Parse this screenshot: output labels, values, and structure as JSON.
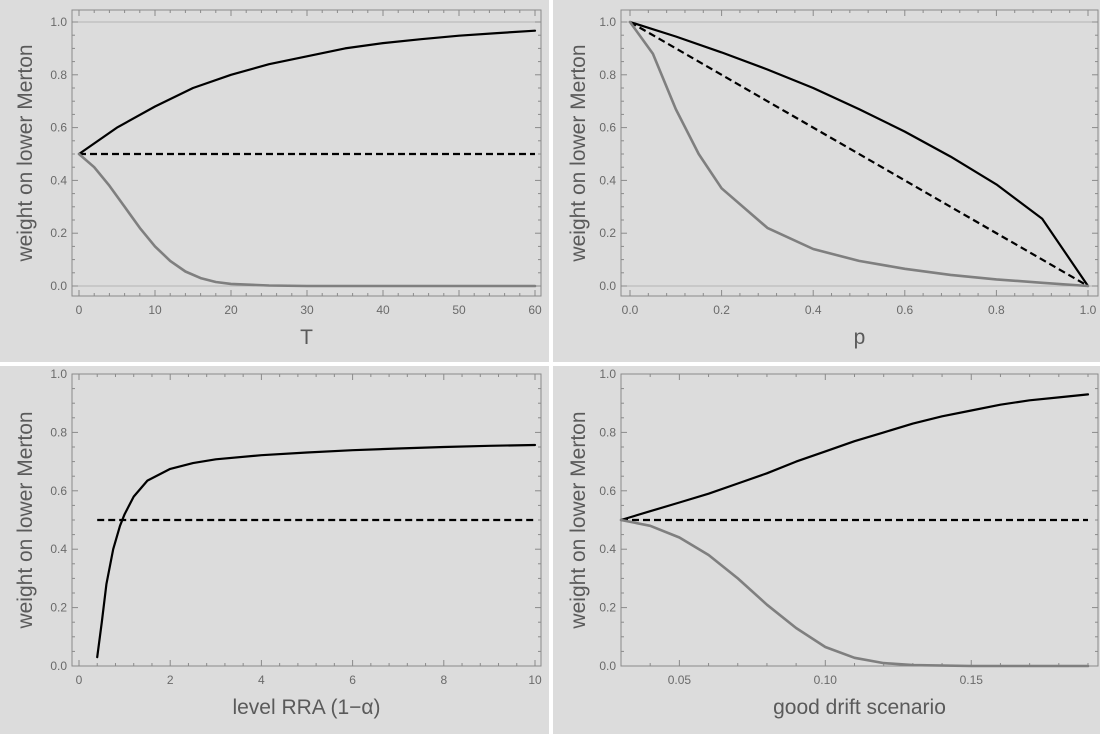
{
  "chart_data": [
    {
      "type": "line",
      "xlabel": "T",
      "ylabel": "weight on lower Merton",
      "xlim": [
        0,
        60
      ],
      "ylim": [
        0,
        1
      ],
      "xticks": [
        "0",
        "10",
        "20",
        "30",
        "40",
        "50",
        "60"
      ],
      "yticks": [
        "0.0",
        "0.2",
        "0.4",
        "0.6",
        "0.8",
        "1.0"
      ],
      "reference_lines": [
        0,
        1
      ],
      "series": [
        {
          "color": "#000000",
          "dash": "solid",
          "x": [
            0,
            5,
            10,
            15,
            20,
            25,
            30,
            35,
            40,
            45,
            50,
            55,
            60
          ],
          "y": [
            0.5,
            0.6,
            0.68,
            0.75,
            0.8,
            0.84,
            0.87,
            0.9,
            0.92,
            0.935,
            0.948,
            0.958,
            0.967
          ]
        },
        {
          "color": "#000000",
          "dash": "dashed",
          "x": [
            0,
            60
          ],
          "y": [
            0.5,
            0.5
          ]
        },
        {
          "color": "#7f7f7f",
          "dash": "solid",
          "x": [
            0,
            2,
            4,
            6,
            8,
            10,
            12,
            14,
            16,
            18,
            20,
            25,
            30,
            40,
            50,
            60
          ],
          "y": [
            0.5,
            0.45,
            0.38,
            0.3,
            0.22,
            0.15,
            0.095,
            0.055,
            0.03,
            0.015,
            0.008,
            0.002,
            0.0,
            0.0,
            0.0,
            0.0
          ]
        }
      ]
    },
    {
      "type": "line",
      "xlabel": "p",
      "ylabel": "weight on lower Merton",
      "xlim": [
        0,
        1
      ],
      "ylim": [
        0,
        1
      ],
      "xticks": [
        "0.0",
        "0.2",
        "0.4",
        "0.6",
        "0.8",
        "1.0"
      ],
      "yticks": [
        "0.0",
        "0.2",
        "0.4",
        "0.6",
        "0.8",
        "1.0"
      ],
      "reference_lines": [
        0,
        1
      ],
      "series": [
        {
          "color": "#000000",
          "dash": "solid",
          "x": [
            0,
            0.1,
            0.2,
            0.3,
            0.4,
            0.5,
            0.6,
            0.7,
            0.8,
            0.9,
            1.0
          ],
          "y": [
            1.0,
            0.945,
            0.885,
            0.82,
            0.75,
            0.67,
            0.585,
            0.49,
            0.385,
            0.255,
            0.0
          ]
        },
        {
          "color": "#000000",
          "dash": "dashed",
          "x": [
            0,
            1
          ],
          "y": [
            1.0,
            0.0
          ]
        },
        {
          "color": "#7f7f7f",
          "dash": "solid",
          "x": [
            0,
            0.05,
            0.1,
            0.15,
            0.2,
            0.3,
            0.4,
            0.5,
            0.6,
            0.7,
            0.8,
            0.9,
            1.0
          ],
          "y": [
            1.0,
            0.88,
            0.67,
            0.5,
            0.37,
            0.22,
            0.14,
            0.095,
            0.065,
            0.042,
            0.025,
            0.012,
            0.0
          ]
        }
      ]
    },
    {
      "type": "line",
      "xlabel": "level RRA (1−α)",
      "ylabel": "weight on lower Merton",
      "xlim": [
        0,
        10
      ],
      "ylim": [
        0,
        1
      ],
      "xticks": [
        "0",
        "2",
        "4",
        "6",
        "8",
        "10"
      ],
      "yticks": [
        "0.0",
        "0.2",
        "0.4",
        "0.6",
        "0.8",
        "1.0"
      ],
      "reference_lines": [],
      "series": [
        {
          "color": "#000000",
          "dash": "solid",
          "x": [
            0.4,
            0.5,
            0.6,
            0.75,
            0.9,
            1.0,
            1.2,
            1.5,
            2.0,
            2.5,
            3,
            4,
            5,
            6,
            7,
            8,
            9,
            10
          ],
          "y": [
            0.03,
            0.15,
            0.28,
            0.4,
            0.48,
            0.52,
            0.58,
            0.635,
            0.675,
            0.695,
            0.708,
            0.722,
            0.731,
            0.739,
            0.745,
            0.75,
            0.754,
            0.757
          ]
        },
        {
          "color": "#000000",
          "dash": "dashed",
          "x": [
            0.4,
            10
          ],
          "y": [
            0.5,
            0.5
          ]
        }
      ]
    },
    {
      "type": "line",
      "xlabel": "good drift scenario",
      "ylabel": "weight on lower Merton",
      "xlim": [
        0.03,
        0.19
      ],
      "ylim": [
        0,
        1
      ],
      "xticks": [
        "0.05",
        "0.10",
        "0.15"
      ],
      "yticks": [
        "0.0",
        "0.2",
        "0.4",
        "0.6",
        "0.8",
        "1.0"
      ],
      "reference_lines": [],
      "series": [
        {
          "color": "#000000",
          "dash": "solid",
          "x": [
            0.03,
            0.04,
            0.05,
            0.06,
            0.07,
            0.08,
            0.09,
            0.1,
            0.11,
            0.12,
            0.13,
            0.14,
            0.15,
            0.16,
            0.17,
            0.18,
            0.19
          ],
          "y": [
            0.5,
            0.53,
            0.56,
            0.59,
            0.625,
            0.66,
            0.7,
            0.735,
            0.77,
            0.8,
            0.83,
            0.855,
            0.875,
            0.895,
            0.91,
            0.92,
            0.93
          ]
        },
        {
          "color": "#000000",
          "dash": "dashed",
          "x": [
            0.03,
            0.19
          ],
          "y": [
            0.5,
            0.5
          ]
        },
        {
          "color": "#7f7f7f",
          "dash": "solid",
          "x": [
            0.03,
            0.04,
            0.05,
            0.06,
            0.07,
            0.08,
            0.09,
            0.1,
            0.11,
            0.12,
            0.13,
            0.15,
            0.17,
            0.19
          ],
          "y": [
            0.5,
            0.48,
            0.44,
            0.38,
            0.3,
            0.21,
            0.13,
            0.065,
            0.028,
            0.01,
            0.003,
            0.0,
            0.0,
            0.0
          ]
        }
      ]
    }
  ]
}
